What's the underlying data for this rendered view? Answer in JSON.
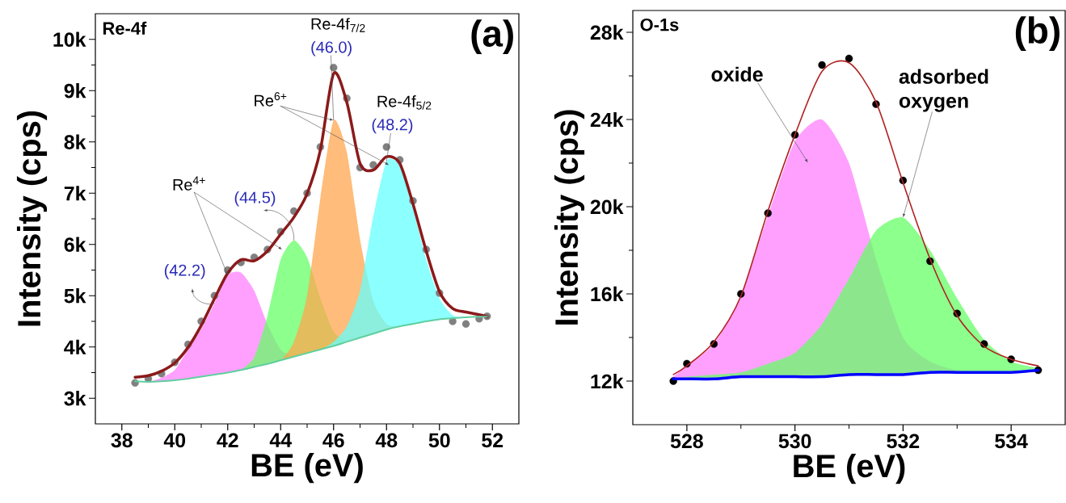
{
  "chart_data": [
    {
      "type": "area",
      "title": "(a)",
      "subtitle": "Re-4f",
      "xlabel": "BE (eV)",
      "ylabel": "Intensity (cps)",
      "x": [
        38.5,
        39,
        39.5,
        40,
        40.5,
        41,
        41.5,
        42,
        42.5,
        43,
        43.5,
        44,
        44.5,
        45,
        45.5,
        46,
        46.5,
        47,
        47.5,
        48,
        48.5,
        49,
        49.5,
        50,
        50.5,
        51,
        51.5,
        51.8
      ],
      "series": [
        {
          "color": "#ff80ff",
          "values": [
            3330,
            3320,
            3400,
            3550,
            3950,
            4350,
            4850,
            5400,
            5450,
            5100,
            4450,
            3950,
            3820,
            3880,
            3950,
            4020,
            4100,
            4180,
            4260,
            4340,
            4400,
            4450,
            4500,
            4540,
            4560,
            4580,
            4590,
            4590
          ]
        },
        {
          "color": "#66ff66",
          "values": [
            3330,
            3320,
            3330,
            3350,
            3380,
            3420,
            3460,
            3500,
            3560,
            3800,
            4600,
            5700,
            6080,
            5750,
            4950,
            4300,
            4120,
            4180,
            4260,
            4340,
            4400,
            4450,
            4500,
            4540,
            4560,
            4580,
            4590,
            4590
          ]
        },
        {
          "color": "#ffa64d",
          "values": [
            3330,
            3320,
            3330,
            3350,
            3380,
            3420,
            3460,
            3500,
            3550,
            3610,
            3670,
            3740,
            4100,
            5000,
            6900,
            8420,
            7800,
            6100,
            4900,
            4450,
            4400,
            4450,
            4500,
            4540,
            4560,
            4580,
            4590,
            4590
          ]
        },
        {
          "color": "#66ffff",
          "values": [
            3330,
            3320,
            3330,
            3350,
            3380,
            3420,
            3460,
            3500,
            3550,
            3610,
            3670,
            3740,
            3810,
            3880,
            3950,
            4100,
            4400,
            5100,
            6550,
            7620,
            7550,
            6700,
            5700,
            4950,
            4620,
            4580,
            4590,
            4590
          ]
        },
        {
          "type": "scatter",
          "color": "#808080",
          "values": [
            3300,
            3380,
            3480,
            3700,
            4050,
            4500,
            5000,
            5500,
            5650,
            5750,
            5900,
            6250,
            6650,
            7000,
            7900,
            9450,
            8850,
            7500,
            7550,
            7900,
            7650,
            6850,
            5900,
            5050,
            4500,
            4450,
            4550,
            4600
          ]
        },
        {
          "type": "line",
          "color": "#8b1a1a",
          "values": [
            3410,
            3440,
            3530,
            3690,
            3990,
            4420,
            4940,
            5440,
            5700,
            5680,
            5870,
            6200,
            6530,
            6990,
            7840,
            9330,
            8770,
            7580,
            7450,
            7710,
            7580,
            6790,
            5870,
            5080,
            4750,
            4680,
            4630,
            4590
          ]
        },
        {
          "type": "line",
          "color": "#5fcf9f",
          "values": [
            3330,
            3320,
            3330,
            3350,
            3380,
            3420,
            3460,
            3500,
            3550,
            3610,
            3670,
            3740,
            3810,
            3880,
            3950,
            4020,
            4100,
            4180,
            4260,
            4340,
            4400,
            4450,
            4500,
            4540,
            4560,
            4580,
            4590,
            4590
          ]
        }
      ],
      "xlim": [
        37,
        53
      ],
      "ylim": [
        2500,
        10500
      ],
      "xticks": [
        38,
        {
          "value": 39,
          "label": null
        },
        40,
        {
          "value": 41,
          "label": null
        },
        42,
        {
          "value": 43,
          "label": null
        },
        44,
        {
          "value": 45,
          "label": null
        },
        46,
        {
          "value": 47,
          "label": null
        },
        48,
        {
          "value": 49,
          "label": null
        },
        50,
        {
          "value": 51,
          "label": null
        },
        52
      ],
      "yticks": [
        {
          "value": 3000,
          "label": "3k"
        },
        {
          "value": 3500,
          "label": null
        },
        {
          "value": 4000,
          "label": "4k"
        },
        {
          "value": 4500,
          "label": null
        },
        {
          "value": 5000,
          "label": "5k"
        },
        {
          "value": 5500,
          "label": null
        },
        {
          "value": 6000,
          "label": "6k"
        },
        {
          "value": 6500,
          "label": null
        },
        {
          "value": 7000,
          "label": "7k"
        },
        {
          "value": 7500,
          "label": null
        },
        {
          "value": 8000,
          "label": "8k"
        },
        {
          "value": 8500,
          "label": null
        },
        {
          "value": 9000,
          "label": "9k"
        },
        {
          "value": 9500,
          "label": null
        },
        {
          "value": 10000,
          "label": "10k"
        }
      ],
      "annotations": [
        "Re-4f$_{7/2}$",
        {
          "text": "(46.0)",
          "x": 46,
          "y": 8420
        },
        {
          "text": "Re$^{6+}$",
          "x": 46,
          "y": 8420
        },
        "Re-4f$_{5/2}$",
        {
          "text": "(48.2)",
          "x": 48,
          "y": 7620
        },
        {
          "text": "Re$^{4+}$",
          "x": 42,
          "y": 5400
        },
        {
          "text": "(44.5)",
          "x": 44.5,
          "y": 6080
        },
        {
          "text": "(42.2)",
          "x": 41.5,
          "y": 4850
        }
      ]
    },
    {
      "type": "area",
      "title": "(b)",
      "subtitle": "O-1s",
      "xlabel": "BE (eV)",
      "ylabel": "Intensity (cps)",
      "x": [
        527.75,
        528,
        528.5,
        529,
        529.5,
        530,
        530.5,
        531,
        531.5,
        532,
        532.5,
        533,
        533.5,
        534,
        534.5
      ],
      "series": [
        {
          "color": "#ff80ff",
          "values": [
            12200,
            12700,
            13700,
            15900,
            19600,
            23000,
            24000,
            22000,
            17600,
            14000,
            12900,
            12500,
            12400,
            12400,
            12500
          ]
        },
        {
          "color": "#66ff66",
          "values": [
            12100,
            12200,
            12300,
            12400,
            12800,
            13300,
            14600,
            16700,
            18900,
            19500,
            18000,
            15800,
            13900,
            12900,
            12600
          ]
        },
        {
          "type": "scatter",
          "color": "#000000",
          "values": [
            12000,
            12800,
            13700,
            16000,
            19700,
            23300,
            26500,
            26800,
            24700,
            21200,
            17500,
            15100,
            13700,
            13000,
            12500
          ]
        },
        {
          "type": "line",
          "color": "#b22222",
          "values": [
            12300,
            12700,
            13800,
            15900,
            19800,
            23300,
            26200,
            26600,
            24800,
            21100,
            17600,
            15000,
            13600,
            13000,
            12700
          ]
        },
        {
          "type": "line",
          "color": "#0000ff",
          "values": [
            12100,
            12100,
            12100,
            12200,
            12200,
            12200,
            12200,
            12300,
            12300,
            12300,
            12400,
            12400,
            12400,
            12400,
            12500
          ]
        }
      ],
      "xlim": [
        527,
        535
      ],
      "ylim": [
        10000,
        29000
      ],
      "xticks": [
        528,
        {
          "value": 529,
          "label": null
        },
        530,
        {
          "value": 531,
          "label": null
        },
        532,
        {
          "value": 533,
          "label": null
        },
        534
      ],
      "yticks": [
        {
          "value": 12000,
          "label": "12k"
        },
        {
          "value": 14000,
          "label": null
        },
        {
          "value": 16000,
          "label": "16k"
        },
        {
          "value": 18000,
          "label": null
        },
        {
          "value": 20000,
          "label": "20k"
        },
        {
          "value": 22000,
          "label": null
        },
        {
          "value": 24000,
          "label": "24k"
        },
        {
          "value": 26000,
          "label": null
        },
        {
          "value": 28000,
          "label": "28k"
        }
      ],
      "annotations": [
        "oxide",
        {
          "text": "adsorbed oxygen",
          "x": 532,
          "y": 19500
        }
      ]
    }
  ]
}
